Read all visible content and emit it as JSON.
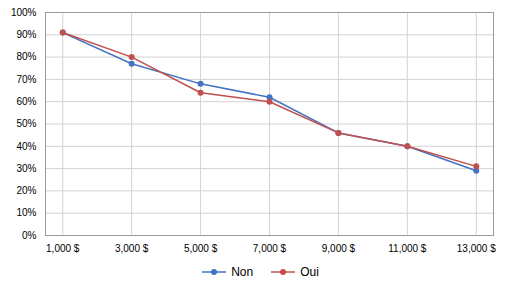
{
  "chart_data": {
    "type": "line",
    "x": [
      1000,
      3000,
      5000,
      7000,
      9000,
      11000,
      13000
    ],
    "series": [
      {
        "name": "Non",
        "color": "#4472C4",
        "values": [
          0.91,
          0.77,
          0.68,
          0.62,
          0.46,
          0.4,
          0.29
        ]
      },
      {
        "name": "Oui",
        "color": "#C0504D",
        "values": [
          0.91,
          0.8,
          0.64,
          0.6,
          0.46,
          0.4,
          0.31
        ]
      }
    ],
    "xlim": [
      500,
      13500
    ],
    "xticks": [
      {
        "value": 1000,
        "label": "1,000 $"
      },
      {
        "value": 3000,
        "label": "3,000 $"
      },
      {
        "value": 5000,
        "label": "5,000 $"
      },
      {
        "value": 7000,
        "label": "7,000 $"
      },
      {
        "value": 9000,
        "label": "9,000 $"
      },
      {
        "value": 11000,
        "label": "11,000 $"
      },
      {
        "value": 13000,
        "label": "13,000 $"
      }
    ],
    "ylim": [
      0.0,
      1.0
    ],
    "yticks": [
      {
        "value": 0.0,
        "label": "0%"
      },
      {
        "value": 0.1,
        "label": "10%"
      },
      {
        "value": 0.2,
        "label": "20%"
      },
      {
        "value": 0.3,
        "label": "30%"
      },
      {
        "value": 0.4,
        "label": "40%"
      },
      {
        "value": 0.5,
        "label": "50%"
      },
      {
        "value": 0.6,
        "label": "60%"
      },
      {
        "value": 0.7,
        "label": "70%"
      },
      {
        "value": 0.8,
        "label": "80%"
      },
      {
        "value": 0.9,
        "label": "90%"
      },
      {
        "value": 1.0,
        "label": "100%"
      }
    ],
    "grid": true,
    "legend": "bottom",
    "marker": "o"
  }
}
